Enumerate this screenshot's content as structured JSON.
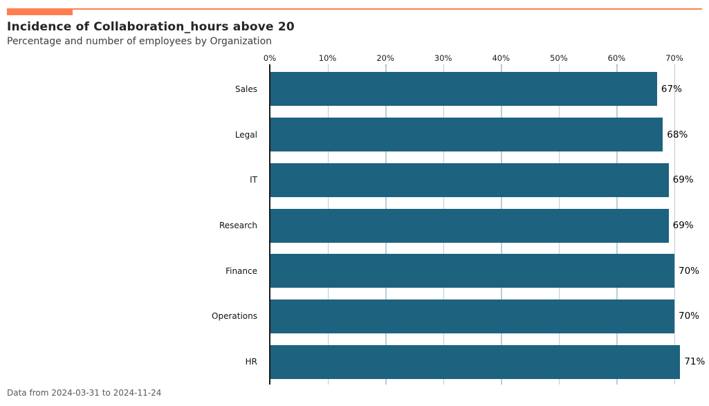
{
  "header": {
    "title": "Incidence of Collaboration_hours above 20",
    "subtitle": "Percentage and number of employees by Organization"
  },
  "footer": {
    "caption": "Data from 2024-03-31 to 2024-11-24"
  },
  "colors": {
    "accent_orange": "#ff7e51",
    "bar_teal": "#1d627e",
    "gridline": "#b9cdd6",
    "tick_mark": "#a9c0cb",
    "spine": "#1a1a1a"
  },
  "chart_data": {
    "type": "bar",
    "orientation": "horizontal",
    "title": "Incidence of Collaboration_hours above 20",
    "subtitle": "Percentage and number of employees by Organization",
    "categories": [
      "Sales",
      "Legal",
      "IT",
      "Research",
      "Finance",
      "Operations",
      "HR"
    ],
    "values": [
      67,
      68,
      69,
      69,
      70,
      70,
      71
    ],
    "value_labels": [
      "67%",
      "68%",
      "69%",
      "69%",
      "70%",
      "70%",
      "71%"
    ],
    "x_ticks_pct": [
      0,
      10,
      20,
      30,
      40,
      50,
      60,
      70
    ],
    "x_tick_labels": [
      "0%",
      "10%",
      "20%",
      "30%",
      "40%",
      "50%",
      "60%",
      "70%"
    ],
    "xlim": [
      0,
      74.8
    ],
    "xlabel": "",
    "ylabel": "",
    "grid": true,
    "axis_position": "top",
    "legend": "none",
    "caption": "Data from 2024-03-31 to 2024-11-24"
  }
}
